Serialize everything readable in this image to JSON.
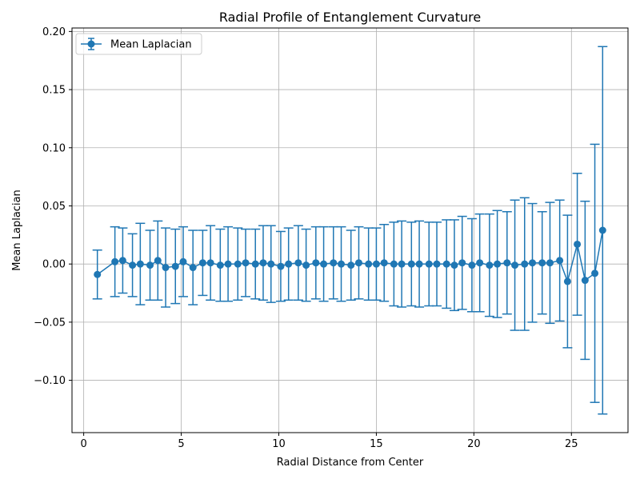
{
  "chart_data": {
    "type": "line",
    "title": "Radial Profile of Entanglement Curvature",
    "xlabel": "Radial Distance from Center",
    "ylabel": "Mean Laplacian",
    "xlim": [
      -0.6,
      27.9
    ],
    "ylim": [
      -0.145,
      0.203
    ],
    "xticks": [
      0,
      5,
      10,
      15,
      20,
      25
    ],
    "xtick_labels": [
      "0",
      "5",
      "10",
      "15",
      "20",
      "25"
    ],
    "yticks": [
      -0.1,
      -0.05,
      0.0,
      0.05,
      0.1,
      0.15,
      0.2
    ],
    "ytick_labels": [
      "−0.10",
      "−0.05",
      "0.00",
      "0.05",
      "0.10",
      "0.15",
      "0.20"
    ],
    "grid": true,
    "legend_position": "top-left",
    "color": "#1f77b4",
    "series": [
      {
        "name": "Mean Laplacian",
        "points": [
          {
            "x": 0.7,
            "y": -0.009,
            "err": 0.021
          },
          {
            "x": 1.6,
            "y": 0.002,
            "err": 0.03
          },
          {
            "x": 2.0,
            "y": 0.003,
            "err": 0.028
          },
          {
            "x": 2.5,
            "y": -0.001,
            "err": 0.027
          },
          {
            "x": 2.9,
            "y": 0.0,
            "err": 0.035
          },
          {
            "x": 3.4,
            "y": -0.001,
            "err": 0.03
          },
          {
            "x": 3.8,
            "y": 0.003,
            "err": 0.034
          },
          {
            "x": 4.2,
            "y": -0.003,
            "err": 0.034
          },
          {
            "x": 4.7,
            "y": -0.002,
            "err": 0.032
          },
          {
            "x": 5.1,
            "y": 0.002,
            "err": 0.03
          },
          {
            "x": 5.6,
            "y": -0.003,
            "err": 0.032
          },
          {
            "x": 6.1,
            "y": 0.001,
            "err": 0.028
          },
          {
            "x": 6.5,
            "y": 0.001,
            "err": 0.032
          },
          {
            "x": 7.0,
            "y": -0.001,
            "err": 0.031
          },
          {
            "x": 7.4,
            "y": 0.0,
            "err": 0.032
          },
          {
            "x": 7.9,
            "y": 0.0,
            "err": 0.031
          },
          {
            "x": 8.3,
            "y": 0.001,
            "err": 0.029
          },
          {
            "x": 8.8,
            "y": 0.0,
            "err": 0.03
          },
          {
            "x": 9.2,
            "y": 0.001,
            "err": 0.032
          },
          {
            "x": 9.6,
            "y": 0.0,
            "err": 0.033
          },
          {
            "x": 10.1,
            "y": -0.002,
            "err": 0.03
          },
          {
            "x": 10.5,
            "y": 0.0,
            "err": 0.031
          },
          {
            "x": 11.0,
            "y": 0.001,
            "err": 0.032
          },
          {
            "x": 11.4,
            "y": -0.001,
            "err": 0.031
          },
          {
            "x": 11.9,
            "y": 0.001,
            "err": 0.031
          },
          {
            "x": 12.3,
            "y": 0.0,
            "err": 0.032
          },
          {
            "x": 12.8,
            "y": 0.001,
            "err": 0.031
          },
          {
            "x": 13.2,
            "y": 0.0,
            "err": 0.032
          },
          {
            "x": 13.7,
            "y": -0.001,
            "err": 0.03
          },
          {
            "x": 14.1,
            "y": 0.001,
            "err": 0.031
          },
          {
            "x": 14.6,
            "y": 0.0,
            "err": 0.031
          },
          {
            "x": 15.0,
            "y": 0.0,
            "err": 0.031
          },
          {
            "x": 15.4,
            "y": 0.001,
            "err": 0.033
          },
          {
            "x": 15.9,
            "y": 0.0,
            "err": 0.036
          },
          {
            "x": 16.3,
            "y": 0.0,
            "err": 0.037
          },
          {
            "x": 16.8,
            "y": 0.0,
            "err": 0.036
          },
          {
            "x": 17.2,
            "y": 0.0,
            "err": 0.037
          },
          {
            "x": 17.7,
            "y": 0.0,
            "err": 0.036
          },
          {
            "x": 18.1,
            "y": 0.0,
            "err": 0.036
          },
          {
            "x": 18.6,
            "y": 0.0,
            "err": 0.038
          },
          {
            "x": 19.0,
            "y": -0.001,
            "err": 0.039
          },
          {
            "x": 19.4,
            "y": 0.001,
            "err": 0.04
          },
          {
            "x": 19.9,
            "y": -0.001,
            "err": 0.04
          },
          {
            "x": 20.3,
            "y": 0.001,
            "err": 0.042
          },
          {
            "x": 20.8,
            "y": -0.001,
            "err": 0.044
          },
          {
            "x": 21.2,
            "y": 0.0,
            "err": 0.046
          },
          {
            "x": 21.7,
            "y": 0.001,
            "err": 0.044
          },
          {
            "x": 22.1,
            "y": -0.001,
            "err": 0.056
          },
          {
            "x": 22.6,
            "y": 0.0,
            "err": 0.057
          },
          {
            "x": 23.0,
            "y": 0.001,
            "err": 0.051
          },
          {
            "x": 23.5,
            "y": 0.001,
            "err": 0.044
          },
          {
            "x": 23.9,
            "y": 0.001,
            "err": 0.052
          },
          {
            "x": 24.4,
            "y": 0.003,
            "err": 0.052
          },
          {
            "x": 24.8,
            "y": -0.015,
            "err": 0.057
          },
          {
            "x": 25.3,
            "y": 0.017,
            "err": 0.061
          },
          {
            "x": 25.7,
            "y": -0.014,
            "err": 0.068
          },
          {
            "x": 26.2,
            "y": -0.008,
            "err": 0.111
          },
          {
            "x": 26.6,
            "y": 0.029,
            "err": 0.158
          }
        ]
      }
    ]
  }
}
